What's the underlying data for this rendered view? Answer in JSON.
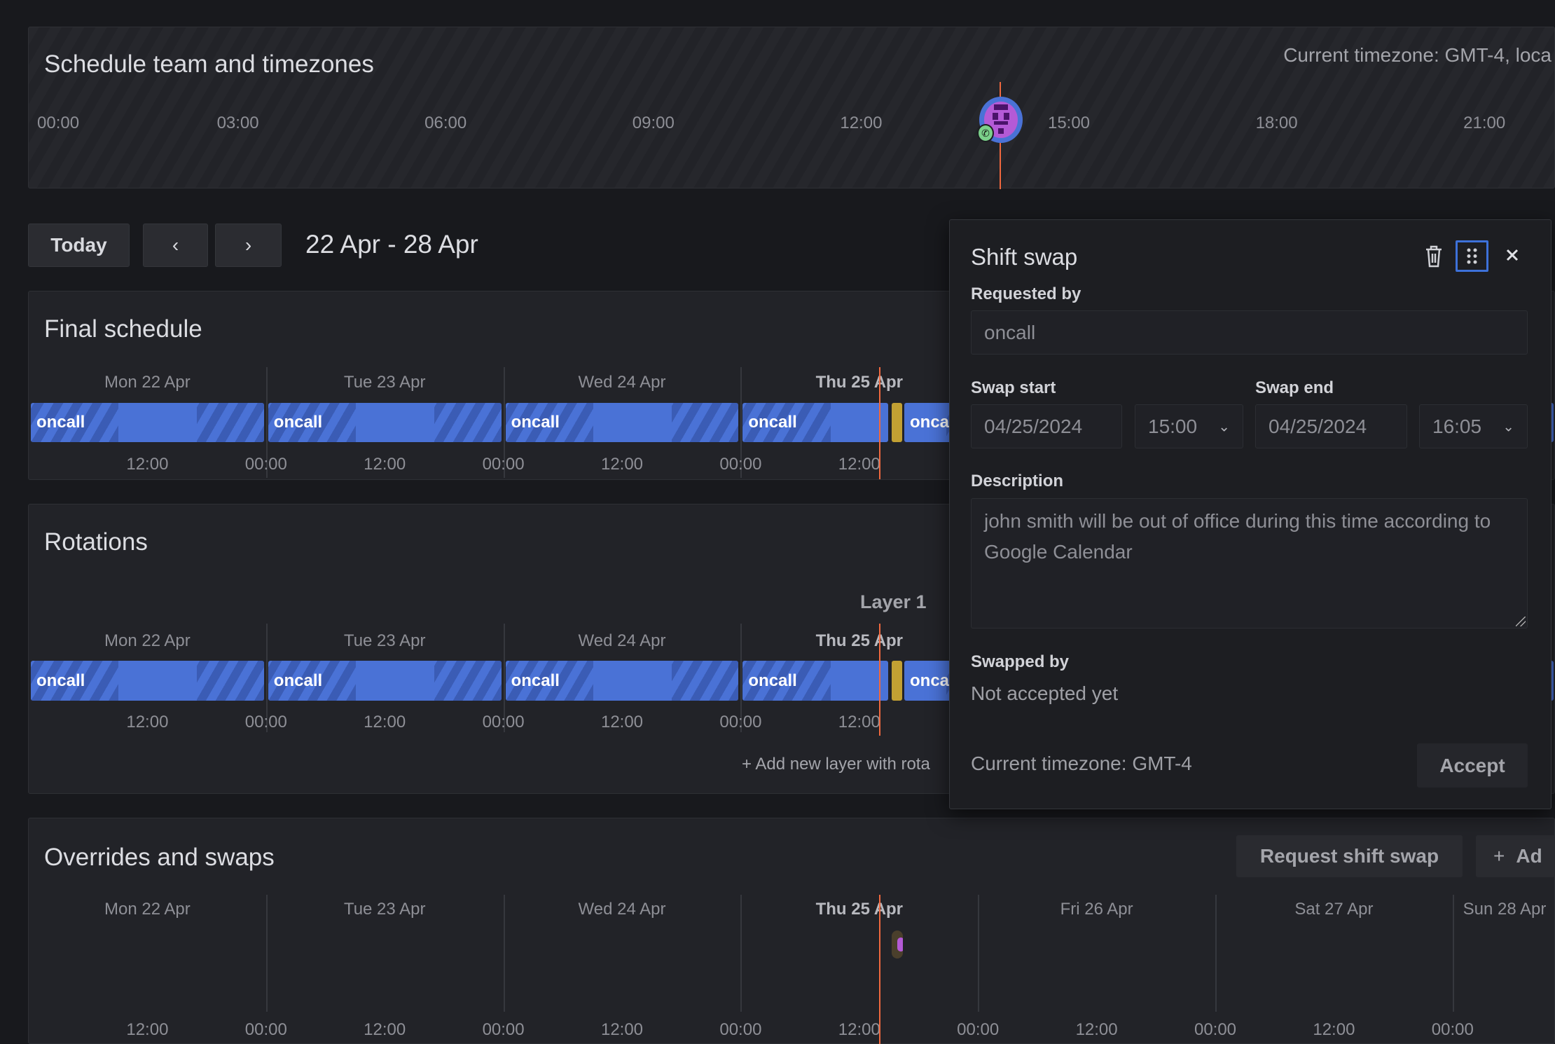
{
  "top": {
    "title": "Schedule team and timezones",
    "timezone_text": "Current timezone: GMT-4, loca",
    "hours": [
      "00:00",
      "03:00",
      "06:00",
      "09:00",
      "12:00",
      "15:00",
      "18:00",
      "21:00"
    ]
  },
  "toolbar": {
    "today_label": "Today",
    "prev_label": "‹",
    "next_label": "›",
    "date_range": "22 Apr - 28 Apr"
  },
  "days": [
    "Mon 22 Apr",
    "Tue 23 Apr",
    "Wed 24 Apr",
    "Thu 25 Apr",
    "Fri 26 Apr",
    "Sat 27 Apr",
    "Sun 28 Apr"
  ],
  "today_index": 3,
  "ticks": [
    "12:00",
    "00:00"
  ],
  "final_schedule": {
    "title": "Final schedule",
    "shift_label": "oncall",
    "partial_label": "onca"
  },
  "rotations": {
    "title": "Rotations",
    "layer_label": "Layer 1",
    "shift_label": "oncall",
    "partial_label": "onca",
    "add_layer": "+ Add new layer with rota"
  },
  "overrides": {
    "title": "Overrides and swaps",
    "request_swap": "Request shift swap",
    "add_label": "Ad"
  },
  "modal": {
    "title": "Shift swap",
    "requested_by_label": "Requested by",
    "requested_by_value": "oncall",
    "swap_start_label": "Swap start",
    "swap_start_date": "04/25/2024",
    "swap_start_time": "15:00",
    "swap_end_label": "Swap end",
    "swap_end_date": "04/25/2024",
    "swap_end_time": "16:05",
    "description_label": "Description",
    "description_value": "john smith will be out of office during this time according to Google Calendar",
    "swapped_by_label": "Swapped by",
    "swapped_by_value": "Not accepted yet",
    "timezone": "Current timezone: GMT-4",
    "accept_label": "Accept"
  },
  "colors": {
    "shift": "#4a72d6",
    "swap": "#c2a033",
    "now_line": "#f0683e",
    "focus": "#3d71d9"
  }
}
